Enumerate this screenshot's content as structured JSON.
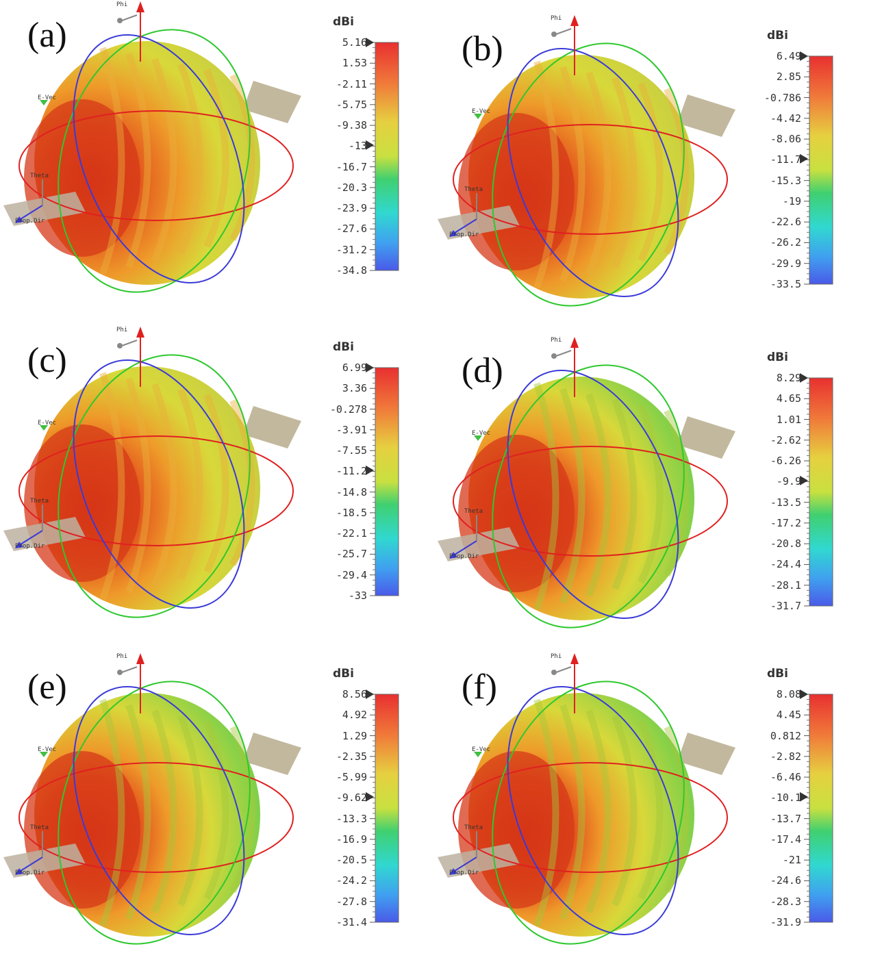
{
  "chart_data": [
    {
      "type": "heatmap",
      "panel_label": "(a)",
      "unit": "dBi",
      "colorbar_ticks": [
        "5.16",
        "1.53",
        "-2.11",
        "-5.75",
        "-9.38",
        "-13",
        "-16.7",
        "-20.3",
        "-23.9",
        "-27.6",
        "-31.2",
        "-34.8"
      ],
      "range": [
        -34.8,
        5.16
      ],
      "greenness": 0.15,
      "axis_labels": [
        "Phi",
        "E-Vec",
        "Theta",
        "Prop.Dir"
      ]
    },
    {
      "type": "heatmap",
      "panel_label": "(b)",
      "unit": "dBi",
      "colorbar_ticks": [
        "6.49",
        "2.85",
        "-0.786",
        "-4.42",
        "-8.06",
        "-11.7",
        "-15.3",
        "-19",
        "-22.6",
        "-26.2",
        "-29.9",
        "-33.5"
      ],
      "range": [
        -33.5,
        6.49
      ],
      "greenness": 0.3,
      "axis_labels": [
        "Phi",
        "E-Vec",
        "Theta",
        "Prop.Dir"
      ]
    },
    {
      "type": "heatmap",
      "panel_label": "(c)",
      "unit": "dBi",
      "colorbar_ticks": [
        "6.99",
        "3.36",
        "-0.278",
        "-3.91",
        "-7.55",
        "-11.2",
        "-14.8",
        "-18.5",
        "-22.1",
        "-25.7",
        "-29.4",
        "-33"
      ],
      "range": [
        -33,
        6.99
      ],
      "greenness": 0.35,
      "axis_labels": [
        "Phi",
        "E-Vec",
        "Theta",
        "Prop.Dir"
      ]
    },
    {
      "type": "heatmap",
      "panel_label": "(d)",
      "unit": "dBi",
      "colorbar_ticks": [
        "8.29",
        "4.65",
        "1.01",
        "-2.62",
        "-6.26",
        "-9.9",
        "-13.5",
        "-17.2",
        "-20.8",
        "-24.4",
        "-28.1",
        "-31.7"
      ],
      "range": [
        -31.7,
        8.29
      ],
      "greenness": 0.55,
      "axis_labels": [
        "Phi",
        "E-Vec",
        "Theta",
        "Prop.Dir"
      ]
    },
    {
      "type": "heatmap",
      "panel_label": "(e)",
      "unit": "dBi",
      "colorbar_ticks": [
        "8.56",
        "4.92",
        "1.29",
        "-2.35",
        "-5.99",
        "-9.62",
        "-13.3",
        "-16.9",
        "-20.5",
        "-24.2",
        "-27.8",
        "-31.4"
      ],
      "range": [
        -31.4,
        8.56
      ],
      "greenness": 0.6,
      "axis_labels": [
        "Phi",
        "E-Vec",
        "Theta",
        "Prop.Dir"
      ]
    },
    {
      "type": "heatmap",
      "panel_label": "(f)",
      "unit": "dBi",
      "colorbar_ticks": [
        "8.08",
        "4.45",
        "0.812",
        "-2.82",
        "-6.46",
        "-10.1",
        "-13.7",
        "-17.4",
        "-21",
        "-24.6",
        "-28.3",
        "-31.9"
      ],
      "range": [
        -31.9,
        8.08
      ],
      "greenness": 0.65,
      "axis_labels": [
        "Phi",
        "E-Vec",
        "Theta",
        "Prop.Dir"
      ]
    }
  ],
  "colors": {
    "axis_ring_red": "#e02020",
    "axis_ring_green": "#2ec82e",
    "axis_ring_blue": "#3a3ad8",
    "phi_arrow": "#e02020",
    "theta_arrow": "#3a3ad8"
  }
}
